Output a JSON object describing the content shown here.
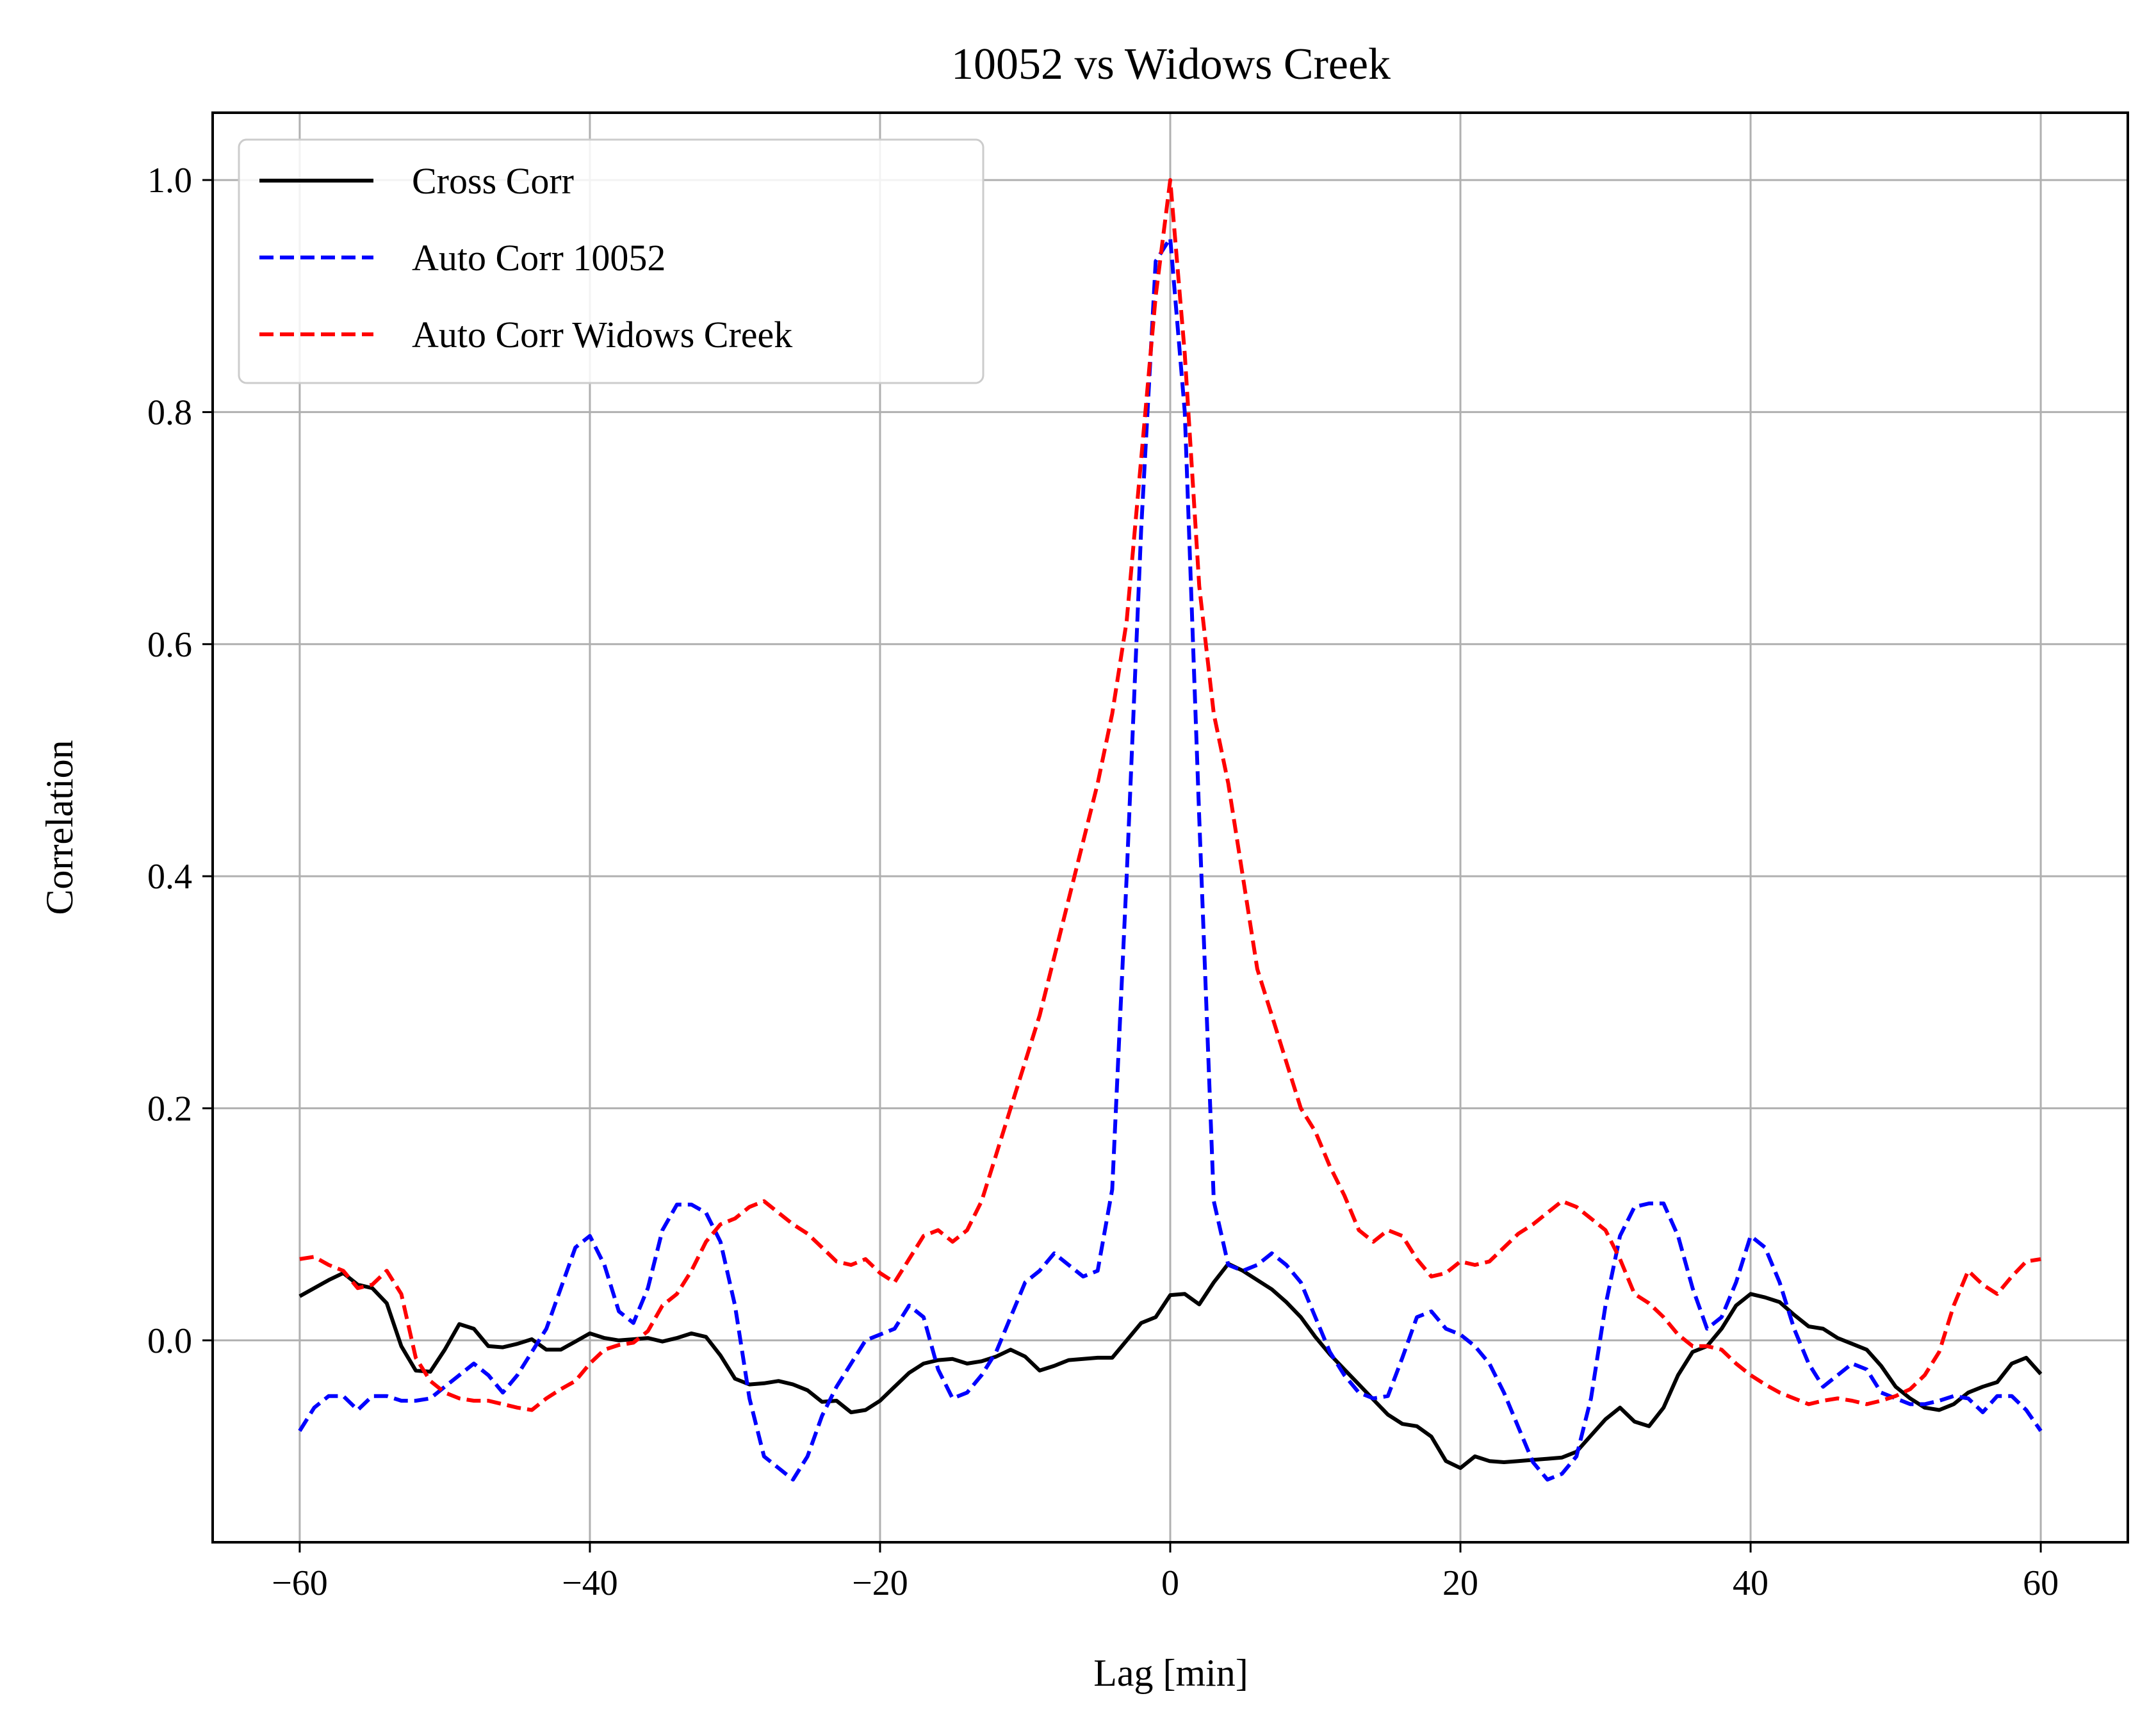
{
  "chart_data": {
    "type": "line",
    "title": "10052 vs Widows Creek",
    "xlabel": "Lag [min]",
    "ylabel": "Correlation",
    "xlim": [
      -66,
      66
    ],
    "ylim": [
      -0.174,
      1.058
    ],
    "xticks": [
      -60,
      -40,
      -20,
      0,
      20,
      40,
      60
    ],
    "xtick_labels": [
      "−60",
      "−40",
      "−20",
      "0",
      "20",
      "40",
      "60"
    ],
    "yticks": [
      0.0,
      0.2,
      0.4,
      0.6,
      0.8,
      1.0
    ],
    "ytick_labels": [
      "0.0",
      "0.2",
      "0.4",
      "0.6",
      "0.8",
      "1.0"
    ],
    "grid": true,
    "legend_position": "top-left",
    "series": [
      {
        "name": "Cross Corr",
        "color": "#000000",
        "dash": "solid",
        "x": [
          -60,
          -58,
          -57,
          -56,
          -55,
          -54,
          -53,
          -52,
          -51,
          -50,
          -49,
          -48,
          -47,
          -46,
          -45,
          -44,
          -43,
          -42,
          -41,
          -40,
          -39,
          -38,
          -37,
          -36,
          -35,
          -34,
          -33,
          -32,
          -31,
          -30,
          -29,
          -28,
          -27,
          -26,
          -25,
          -24,
          -23,
          -22,
          -21,
          -20,
          -19,
          -18,
          -17,
          -16,
          -15,
          -14,
          -13,
          -12,
          -11,
          -10,
          -9,
          -8,
          -7,
          -6,
          -5,
          -4,
          -3,
          -2,
          -1,
          0,
          1,
          2,
          3,
          4,
          5,
          6,
          7,
          8,
          9,
          10,
          11,
          12,
          13,
          14,
          15,
          16,
          17,
          18,
          19,
          20,
          21,
          22,
          23,
          24,
          25,
          26,
          27,
          28,
          29,
          30,
          31,
          32,
          33,
          34,
          35,
          36,
          37,
          38,
          39,
          40,
          41,
          42,
          43,
          44,
          45,
          46,
          47,
          48,
          49,
          50,
          51,
          52,
          53,
          54,
          55,
          56,
          57,
          58,
          59,
          60
        ],
        "y": [
          0.038,
          0.052,
          0.058,
          0.048,
          0.045,
          0.032,
          -0.005,
          -0.026,
          -0.027,
          -0.008,
          0.014,
          0.01,
          -0.005,
          -0.006,
          -0.003,
          0.001,
          -0.008,
          -0.008,
          -0.001,
          0.006,
          0.002,
          0.0,
          0.001,
          0.002,
          -0.001,
          0.002,
          0.006,
          0.003,
          -0.013,
          -0.033,
          -0.038,
          -0.037,
          -0.035,
          -0.038,
          -0.043,
          -0.053,
          -0.052,
          -0.062,
          -0.06,
          -0.052,
          -0.04,
          -0.028,
          -0.02,
          -0.017,
          -0.016,
          -0.02,
          -0.018,
          -0.014,
          -0.008,
          -0.014,
          -0.026,
          -0.022,
          -0.017,
          -0.016,
          -0.015,
          -0.015,
          0.0,
          0.015,
          0.02,
          0.039,
          0.04,
          0.031,
          0.05,
          0.066,
          0.06,
          0.052,
          0.044,
          0.033,
          0.02,
          0.003,
          -0.012,
          -0.025,
          -0.038,
          -0.051,
          -0.064,
          -0.072,
          -0.074,
          -0.083,
          -0.104,
          -0.11,
          -0.1,
          -0.104,
          -0.105,
          -0.104,
          -0.103,
          -0.102,
          -0.101,
          -0.096,
          -0.082,
          -0.068,
          -0.058,
          -0.07,
          -0.074,
          -0.058,
          -0.03,
          -0.01,
          -0.005,
          0.01,
          0.03,
          0.04,
          0.037,
          0.033,
          0.022,
          0.012,
          0.01,
          0.002,
          -0.003,
          -0.008,
          -0.022,
          -0.04,
          -0.05,
          -0.058,
          -0.06,
          -0.055,
          -0.045,
          -0.04,
          -0.036,
          -0.02,
          -0.015,
          -0.029
        ]
      },
      {
        "name": "Auto Corr 10052",
        "color": "#0000ff",
        "dash": "dashed",
        "x": [
          -60,
          -59,
          -58,
          -57,
          -56,
          -55,
          -54,
          -53,
          -52,
          -51,
          -50,
          -49,
          -48,
          -47,
          -46,
          -45,
          -44,
          -43,
          -42,
          -41,
          -40,
          -39,
          -38,
          -37,
          -36,
          -35,
          -34,
          -33,
          -32,
          -31,
          -30,
          -29,
          -28,
          -27,
          -26,
          -25,
          -24,
          -23,
          -22,
          -21,
          -20,
          -19,
          -18,
          -17,
          -16,
          -15,
          -14,
          -13,
          -12,
          -11,
          -10,
          -9,
          -8,
          -7,
          -6,
          -5,
          -4,
          -3,
          -2,
          -1,
          0,
          1,
          2,
          3,
          4,
          5,
          6,
          7,
          8,
          9,
          10,
          11,
          12,
          13,
          14,
          15,
          16,
          17,
          18,
          19,
          20,
          21,
          22,
          23,
          24,
          25,
          26,
          27,
          28,
          29,
          30,
          31,
          32,
          33,
          34,
          35,
          36,
          37,
          38,
          39,
          40,
          41,
          42,
          43,
          44,
          45,
          46,
          47,
          48,
          49,
          50,
          51,
          52,
          53,
          54,
          55,
          56,
          57,
          58,
          59,
          60
        ],
        "y": [
          -0.078,
          -0.058,
          -0.048,
          -0.048,
          -0.06,
          -0.048,
          -0.048,
          -0.052,
          -0.052,
          -0.05,
          -0.04,
          -0.03,
          -0.02,
          -0.03,
          -0.045,
          -0.03,
          -0.01,
          0.01,
          0.045,
          0.08,
          0.09,
          0.065,
          0.025,
          0.015,
          0.045,
          0.095,
          0.117,
          0.117,
          0.11,
          0.085,
          0.03,
          -0.05,
          -0.1,
          -0.11,
          -0.12,
          -0.1,
          -0.065,
          -0.04,
          -0.02,
          0.0,
          0.005,
          0.01,
          0.03,
          0.02,
          -0.025,
          -0.05,
          -0.045,
          -0.03,
          -0.01,
          0.02,
          0.05,
          0.06,
          0.075,
          0.065,
          0.055,
          0.06,
          0.13,
          0.4,
          0.7,
          0.93,
          0.95,
          0.8,
          0.45,
          0.12,
          0.065,
          0.06,
          0.065,
          0.075,
          0.065,
          0.05,
          0.02,
          -0.01,
          -0.03,
          -0.045,
          -0.05,
          -0.048,
          -0.015,
          0.02,
          0.025,
          0.01,
          0.005,
          -0.005,
          -0.02,
          -0.045,
          -0.075,
          -0.105,
          -0.12,
          -0.115,
          -0.1,
          -0.05,
          0.03,
          0.09,
          0.115,
          0.118,
          0.118,
          0.09,
          0.045,
          0.01,
          0.02,
          0.05,
          0.09,
          0.08,
          0.05,
          0.01,
          -0.02,
          -0.04,
          -0.03,
          -0.02,
          -0.025,
          -0.045,
          -0.05,
          -0.055,
          -0.055,
          -0.052,
          -0.048,
          -0.05,
          -0.062,
          -0.048,
          -0.048,
          -0.06,
          -0.078
        ]
      },
      {
        "name": "Auto Corr Widows Creek",
        "color": "#ff0000",
        "dash": "dashed",
        "x": [
          -60,
          -59,
          -58,
          -57,
          -56,
          -55,
          -54,
          -53,
          -52,
          -51,
          -50,
          -49,
          -48,
          -47,
          -46,
          -45,
          -44,
          -43,
          -42,
          -41,
          -40,
          -39,
          -38,
          -37,
          -36,
          -35,
          -34,
          -33,
          -32,
          -31,
          -30,
          -29,
          -28,
          -27,
          -26,
          -25,
          -24,
          -23,
          -22,
          -21,
          -20,
          -19,
          -18,
          -17,
          -16,
          -15,
          -14,
          -13,
          -12,
          -11,
          -10,
          -9,
          -8,
          -7,
          -6,
          -5,
          -4,
          -3,
          -2,
          -1,
          0,
          1,
          2,
          3,
          4,
          5,
          6,
          7,
          8,
          9,
          10,
          11,
          12,
          13,
          14,
          15,
          16,
          17,
          18,
          19,
          20,
          21,
          22,
          23,
          24,
          25,
          26,
          27,
          28,
          29,
          30,
          31,
          32,
          33,
          34,
          35,
          36,
          37,
          38,
          39,
          40,
          41,
          42,
          43,
          44,
          45,
          46,
          47,
          48,
          49,
          50,
          51,
          52,
          53,
          54,
          55,
          56,
          57,
          58,
          59,
          60
        ],
        "y": [
          0.07,
          0.072,
          0.065,
          0.06,
          0.045,
          0.048,
          0.06,
          0.04,
          -0.015,
          -0.035,
          -0.045,
          -0.05,
          -0.052,
          -0.052,
          -0.055,
          -0.058,
          -0.06,
          -0.05,
          -0.042,
          -0.035,
          -0.02,
          -0.008,
          -0.004,
          -0.002,
          0.008,
          0.03,
          0.04,
          0.06,
          0.085,
          0.1,
          0.105,
          0.115,
          0.12,
          0.11,
          0.1,
          0.092,
          0.08,
          0.068,
          0.065,
          0.07,
          0.058,
          0.05,
          0.07,
          0.09,
          0.095,
          0.085,
          0.095,
          0.12,
          0.16,
          0.2,
          0.24,
          0.28,
          0.33,
          0.38,
          0.43,
          0.48,
          0.54,
          0.62,
          0.76,
          0.9,
          1.0,
          0.85,
          0.65,
          0.54,
          0.48,
          0.4,
          0.32,
          0.28,
          0.24,
          0.2,
          0.18,
          0.15,
          0.125,
          0.095,
          0.085,
          0.095,
          0.09,
          0.07,
          0.055,
          0.058,
          0.068,
          0.065,
          0.068,
          0.08,
          0.092,
          0.1,
          0.11,
          0.12,
          0.115,
          0.105,
          0.095,
          0.07,
          0.04,
          0.032,
          0.02,
          0.005,
          -0.005,
          -0.005,
          -0.008,
          -0.02,
          -0.03,
          -0.038,
          -0.045,
          -0.05,
          -0.055,
          -0.052,
          -0.05,
          -0.052,
          -0.055,
          -0.052,
          -0.048,
          -0.042,
          -0.03,
          -0.01,
          0.03,
          0.06,
          0.048,
          0.04,
          0.055,
          0.068,
          0.07
        ]
      }
    ]
  }
}
